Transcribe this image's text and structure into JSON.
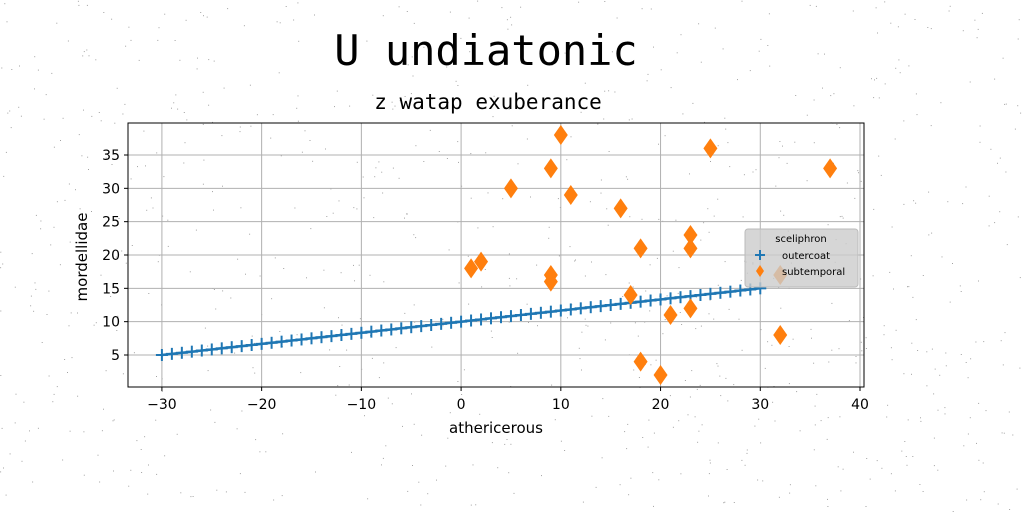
{
  "chart_data": {
    "type": "scatter",
    "title": "U undiatonic",
    "subtitle": "z watap exuberance",
    "xlabel": "athericerous",
    "ylabel": "mordellidae",
    "xlim": [
      -33.4,
      40.4
    ],
    "ylim": [
      0.2,
      39.8
    ],
    "xticks": [
      -30,
      -20,
      -10,
      0,
      10,
      20,
      30,
      40
    ],
    "xtick_labels": [
      "−30",
      "−20",
      "−10",
      "0",
      "10",
      "20",
      "30",
      "40"
    ],
    "yticks": [
      5,
      10,
      15,
      20,
      25,
      30,
      35
    ],
    "ytick_labels": [
      "5",
      "10",
      "15",
      "20",
      "25",
      "30",
      "35"
    ],
    "grid": true,
    "legend": {
      "title": "sceliphron",
      "placement": "center-right",
      "entries": [
        "outercoat",
        "subtemporal"
      ]
    },
    "series": [
      {
        "name": "outercoat",
        "marker": "plus",
        "color": "#1f77b4",
        "x": [
          -30,
          -29,
          -28,
          -27,
          -26,
          -25,
          -24,
          -23,
          -22,
          -21,
          -20,
          -19,
          -18,
          -17,
          -16,
          -15,
          -14,
          -13,
          -12,
          -11,
          -10,
          -9,
          -8,
          -7,
          -6,
          -5,
          -4,
          -3,
          -2,
          -1,
          0,
          1,
          2,
          3,
          4,
          5,
          6,
          7,
          8,
          9,
          10,
          11,
          12,
          13,
          14,
          15,
          16,
          17,
          18,
          19,
          20,
          21,
          22,
          23,
          24,
          25,
          26,
          27,
          28,
          29,
          30
        ],
        "y": [
          5,
          5.17,
          5.33,
          5.5,
          5.67,
          5.83,
          6,
          6.17,
          6.33,
          6.5,
          6.67,
          6.83,
          7,
          7.17,
          7.33,
          7.5,
          7.67,
          7.83,
          8,
          8.17,
          8.33,
          8.5,
          8.67,
          8.83,
          9,
          9.17,
          9.33,
          9.5,
          9.67,
          9.83,
          10,
          10.17,
          10.33,
          10.5,
          10.67,
          10.83,
          11,
          11.17,
          11.33,
          11.5,
          11.67,
          11.83,
          12,
          12.17,
          12.33,
          12.5,
          12.67,
          12.83,
          13,
          13.17,
          13.33,
          13.5,
          13.67,
          13.83,
          14,
          14.17,
          14.33,
          14.5,
          14.67,
          14.83,
          15
        ]
      },
      {
        "name": "subtemporal",
        "marker": "thin_diamond",
        "color": "#ff7f0e",
        "x": [
          10,
          9,
          5,
          11,
          16,
          25,
          37,
          23,
          23,
          18,
          2,
          1,
          9,
          9,
          17,
          23,
          21,
          32,
          32,
          18,
          20
        ],
        "y": [
          38,
          33,
          30,
          29,
          27,
          36,
          33,
          23,
          21,
          21,
          19,
          18,
          17,
          16,
          14,
          12,
          11,
          17,
          8,
          4,
          2
        ]
      }
    ]
  }
}
